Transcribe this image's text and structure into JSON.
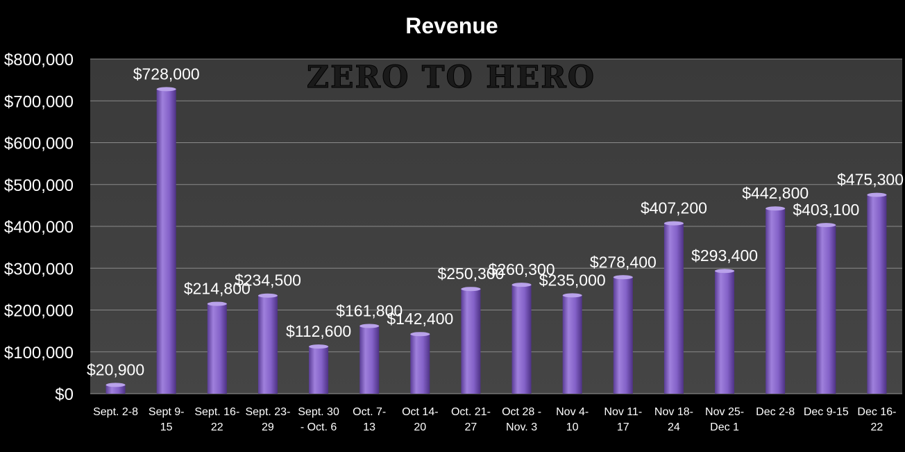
{
  "chart_data": {
    "type": "bar",
    "title": "Revenue",
    "watermark": "ZERO TO HERO",
    "categories": [
      [
        "Sept. 2-8"
      ],
      [
        "Sept 9-",
        "15"
      ],
      [
        "Sept. 16-",
        "22"
      ],
      [
        "Sept. 23-",
        "29"
      ],
      [
        "Sept. 30",
        "- Oct. 6"
      ],
      [
        "Oct. 7-",
        "13"
      ],
      [
        "Oct 14-",
        "20"
      ],
      [
        "Oct. 21-",
        "27"
      ],
      [
        "Oct 28 -",
        "Nov. 3"
      ],
      [
        "Nov 4-",
        "10"
      ],
      [
        "Nov 11-",
        "17"
      ],
      [
        "Nov 18-",
        "24"
      ],
      [
        "Nov 25-",
        "Dec 1"
      ],
      [
        "Dec 2-8"
      ],
      [
        "Dec 9-15"
      ],
      [
        "Dec 16-",
        "22"
      ]
    ],
    "values": [
      20900,
      728000,
      214800,
      234500,
      112600,
      161800,
      142400,
      250300,
      260300,
      235000,
      278400,
      407200,
      293400,
      442800,
      403100,
      475300
    ],
    "data_labels": [
      "$20,900",
      "$728,000",
      "$214,800",
      "$234,500",
      "$112,600",
      "$161,800",
      "$142,400",
      "$250,300",
      "$260,300",
      "$235,000",
      "$278,400",
      "$407,200",
      "$293,400",
      "$442,800",
      "$403,100",
      "$475,300"
    ],
    "yticks": [
      0,
      100000,
      200000,
      300000,
      400000,
      500000,
      600000,
      700000,
      800000
    ],
    "ytick_labels": [
      "$0",
      "$100,000",
      "$200,000",
      "$300,000",
      "$400,000",
      "$500,000",
      "$600,000",
      "$700,000",
      "$800,000"
    ],
    "ylim": [
      0,
      800000
    ],
    "grid": true,
    "colors": {
      "background": "#000000",
      "plot_area": "#3f3f3f",
      "gridline": "#8a8a8a",
      "bar_light": "#9f80dc",
      "bar_mid": "#7a57c0",
      "bar_dark": "#4e3285",
      "text": "#ffffff"
    }
  }
}
